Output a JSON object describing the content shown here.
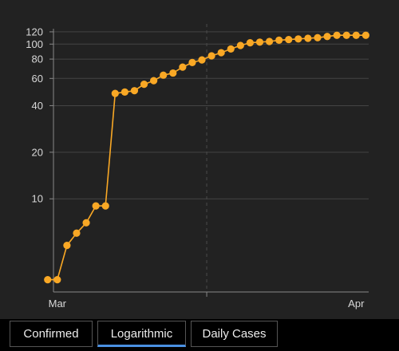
{
  "chart_data": {
    "type": "line",
    "y_scale": "log",
    "ylim": [
      2.5,
      135
    ],
    "y_ticks": [
      10,
      20,
      40,
      60,
      80,
      100,
      120
    ],
    "x_ticks": [
      {
        "label": "Mar",
        "x": 1
      },
      {
        "label": "Apr",
        "x": 32
      }
    ],
    "xlim": [
      0.6,
      33.3
    ],
    "grid": {
      "horizontal": true,
      "vertical_dashed": true
    },
    "series": [
      {
        "color": "#f9a825",
        "x": [
          0,
          1,
          2,
          3,
          4,
          5,
          6,
          7,
          8,
          9,
          10,
          11,
          12,
          13,
          14,
          15,
          16,
          17,
          18,
          19,
          20,
          21,
          22,
          23,
          24,
          25,
          26,
          27,
          28,
          29,
          30,
          31,
          32,
          33
        ],
        "values": [
          3,
          3,
          5,
          6,
          7,
          9,
          9,
          48,
          49,
          50,
          55,
          58,
          63,
          65,
          71,
          76,
          79,
          84,
          88,
          93,
          98,
          102,
          103,
          104,
          106,
          107,
          108,
          109,
          110,
          112,
          114,
          114,
          114,
          114
        ]
      }
    ]
  },
  "tabs": {
    "confirmed_label": "Confirmed",
    "logarithmic_label": "Logarithmic",
    "daily_label": "Daily Cases"
  }
}
